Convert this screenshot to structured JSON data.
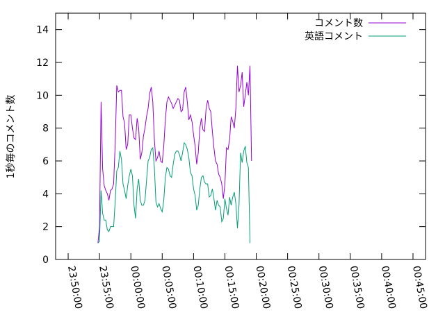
{
  "chart_data": {
    "type": "line",
    "title": "",
    "xlabel": "",
    "ylabel": "1秒毎のコメント数",
    "ylim": [
      0,
      15
    ],
    "yticks": [
      0,
      2,
      4,
      6,
      8,
      10,
      12,
      14
    ],
    "xlim": [
      "23:48:00",
      "00:47:00"
    ],
    "xticks": [
      "23:50:00",
      "23:55:00",
      "00:00:00",
      "00:05:00",
      "00:10:00",
      "00:15:00",
      "00:20:00",
      "00:25:00",
      "00:30:00",
      "00:35:00",
      "00:40:00",
      "00:45:00"
    ],
    "grid": false,
    "legend": "top-right",
    "series": [
      {
        "name": "コメント数",
        "color": "#9400d3",
        "points": [
          [
            "23:54:45",
            1.0
          ],
          [
            "23:55:00",
            2.0
          ],
          [
            "23:55:15",
            9.6
          ],
          [
            "23:55:30",
            5.5
          ],
          [
            "23:55:45",
            4.5
          ],
          [
            "23:56:00",
            4.2
          ],
          [
            "23:56:15",
            4.0
          ],
          [
            "23:56:30",
            3.6
          ],
          [
            "23:56:45",
            4.2
          ],
          [
            "23:57:00",
            4.3
          ],
          [
            "23:57:15",
            4.6
          ],
          [
            "23:57:30",
            7.0
          ],
          [
            "23:57:45",
            10.6
          ],
          [
            "23:58:00",
            10.2
          ],
          [
            "23:58:15",
            10.3
          ],
          [
            "23:58:30",
            10.3
          ],
          [
            "23:58:45",
            8.7
          ],
          [
            "23:59:00",
            8.3
          ],
          [
            "23:59:15",
            6.7
          ],
          [
            "23:59:30",
            7.0
          ],
          [
            "23:59:45",
            8.8
          ],
          [
            "00:00:00",
            8.8
          ],
          [
            "00:00:15",
            8.0
          ],
          [
            "00:00:30",
            7.4
          ],
          [
            "00:00:45",
            7.3
          ],
          [
            "00:01:00",
            8.6
          ],
          [
            "00:01:15",
            8.0
          ],
          [
            "00:01:30",
            6.1
          ],
          [
            "00:01:45",
            6.5
          ],
          [
            "00:02:00",
            7.5
          ],
          [
            "00:02:15",
            8.0
          ],
          [
            "00:02:30",
            8.7
          ],
          [
            "00:02:45",
            9.2
          ],
          [
            "00:03:00",
            10.1
          ],
          [
            "00:03:15",
            10.5
          ],
          [
            "00:03:30",
            9.6
          ],
          [
            "00:03:45",
            7.3
          ],
          [
            "00:04:00",
            6.0
          ],
          [
            "00:04:15",
            6.2
          ],
          [
            "00:04:30",
            6.6
          ],
          [
            "00:04:45",
            6.0
          ],
          [
            "00:05:00",
            5.9
          ],
          [
            "00:05:15",
            6.9
          ],
          [
            "00:05:30",
            8.5
          ],
          [
            "00:05:45",
            9.6
          ],
          [
            "00:06:00",
            9.9
          ],
          [
            "00:06:15",
            9.7
          ],
          [
            "00:06:30",
            9.5
          ],
          [
            "00:06:45",
            9.2
          ],
          [
            "00:07:00",
            9.4
          ],
          [
            "00:07:15",
            9.6
          ],
          [
            "00:07:30",
            9.8
          ],
          [
            "00:07:45",
            9.7
          ],
          [
            "00:08:00",
            9.0
          ],
          [
            "00:08:15",
            9.1
          ],
          [
            "00:08:30",
            10.2
          ],
          [
            "00:08:45",
            10.5
          ],
          [
            "00:09:00",
            9.6
          ],
          [
            "00:09:15",
            8.5
          ],
          [
            "00:09:30",
            8.8
          ],
          [
            "00:09:45",
            8.4
          ],
          [
            "00:10:00",
            7.6
          ],
          [
            "00:10:15",
            6.9
          ],
          [
            "00:10:30",
            5.8
          ],
          [
            "00:10:45",
            6.5
          ],
          [
            "00:11:00",
            8.0
          ],
          [
            "00:11:15",
            8.6
          ],
          [
            "00:11:30",
            7.9
          ],
          [
            "00:11:45",
            7.8
          ],
          [
            "00:12:00",
            9.2
          ],
          [
            "00:12:15",
            9.7
          ],
          [
            "00:12:30",
            9.2
          ],
          [
            "00:12:45",
            9.0
          ],
          [
            "00:13:00",
            7.8
          ],
          [
            "00:13:15",
            6.8
          ],
          [
            "00:13:30",
            6.0
          ],
          [
            "00:13:45",
            5.8
          ],
          [
            "00:14:00",
            5.2
          ],
          [
            "00:14:15",
            5.0
          ],
          [
            "00:14:30",
            4.6
          ],
          [
            "00:14:45",
            3.7
          ],
          [
            "00:15:00",
            4.6
          ],
          [
            "00:15:15",
            6.8
          ],
          [
            "00:15:30",
            6.7
          ],
          [
            "00:15:45",
            7.3
          ],
          [
            "00:16:00",
            8.7
          ],
          [
            "00:16:15",
            8.4
          ],
          [
            "00:16:30",
            8.0
          ],
          [
            "00:16:45",
            9.2
          ],
          [
            "00:17:00",
            11.8
          ],
          [
            "00:17:15",
            10.2
          ],
          [
            "00:17:30",
            10.6
          ],
          [
            "00:17:45",
            11.4
          ],
          [
            "00:18:00",
            9.3
          ],
          [
            "00:18:15",
            10.0
          ],
          [
            "00:18:30",
            10.8
          ],
          [
            "00:18:45",
            10.0
          ],
          [
            "00:19:00",
            11.8
          ],
          [
            "00:19:15",
            6.0
          ]
        ]
      },
      {
        "name": "英語コメント",
        "color": "#009e73",
        "points": [
          [
            "23:54:45",
            1.0
          ],
          [
            "23:55:00",
            1.1
          ],
          [
            "23:55:15",
            4.2
          ],
          [
            "23:55:30",
            2.8
          ],
          [
            "23:55:45",
            2.4
          ],
          [
            "23:56:00",
            2.4
          ],
          [
            "23:56:15",
            1.8
          ],
          [
            "23:56:30",
            1.7
          ],
          [
            "23:56:45",
            2.0
          ],
          [
            "23:57:00",
            2.0
          ],
          [
            "23:57:15",
            2.0
          ],
          [
            "23:57:30",
            3.5
          ],
          [
            "23:57:45",
            5.4
          ],
          [
            "23:58:00",
            5.6
          ],
          [
            "23:58:15",
            6.6
          ],
          [
            "23:58:30",
            6.1
          ],
          [
            "23:58:45",
            4.6
          ],
          [
            "23:59:00",
            4.2
          ],
          [
            "23:59:15",
            3.7
          ],
          [
            "23:59:30",
            4.5
          ],
          [
            "23:59:45",
            5.1
          ],
          [
            "00:00:00",
            5.5
          ],
          [
            "00:00:15",
            5.1
          ],
          [
            "00:00:30",
            3.3
          ],
          [
            "00:00:45",
            2.5
          ],
          [
            "00:01:00",
            4.3
          ],
          [
            "00:01:15",
            4.9
          ],
          [
            "00:01:30",
            3.6
          ],
          [
            "00:01:45",
            3.3
          ],
          [
            "00:02:00",
            3.3
          ],
          [
            "00:02:15",
            3.6
          ],
          [
            "00:02:30",
            4.8
          ],
          [
            "00:02:45",
            6.0
          ],
          [
            "00:03:00",
            6.2
          ],
          [
            "00:03:15",
            6.7
          ],
          [
            "00:03:30",
            6.8
          ],
          [
            "00:03:45",
            5.6
          ],
          [
            "00:04:00",
            3.5
          ],
          [
            "00:04:15",
            3.2
          ],
          [
            "00:04:30",
            3.4
          ],
          [
            "00:04:45",
            3.1
          ],
          [
            "00:05:00",
            2.9
          ],
          [
            "00:05:15",
            3.6
          ],
          [
            "00:05:30",
            5.0
          ],
          [
            "00:05:45",
            5.6
          ],
          [
            "00:06:00",
            5.5
          ],
          [
            "00:06:15",
            5.1
          ],
          [
            "00:06:30",
            5.0
          ],
          [
            "00:06:45",
            5.8
          ],
          [
            "00:07:00",
            6.4
          ],
          [
            "00:07:15",
            6.6
          ],
          [
            "00:07:30",
            6.6
          ],
          [
            "00:07:45",
            6.4
          ],
          [
            "00:08:00",
            6.0
          ],
          [
            "00:08:15",
            6.5
          ],
          [
            "00:08:30",
            7.1
          ],
          [
            "00:08:45",
            7.0
          ],
          [
            "00:09:00",
            6.7
          ],
          [
            "00:09:15",
            6.2
          ],
          [
            "00:09:30",
            5.3
          ],
          [
            "00:09:45",
            5.1
          ],
          [
            "00:10:00",
            4.3
          ],
          [
            "00:10:15",
            3.9
          ],
          [
            "00:10:30",
            3.0
          ],
          [
            "00:10:45",
            3.3
          ],
          [
            "00:11:00",
            4.3
          ],
          [
            "00:11:15",
            5.0
          ],
          [
            "00:11:30",
            5.1
          ],
          [
            "00:11:45",
            4.7
          ],
          [
            "00:12:00",
            4.6
          ],
          [
            "00:12:15",
            4.6
          ],
          [
            "00:12:30",
            3.8
          ],
          [
            "00:12:45",
            3.9
          ],
          [
            "00:13:00",
            4.3
          ],
          [
            "00:13:15",
            3.7
          ],
          [
            "00:13:30",
            3.0
          ],
          [
            "00:13:45",
            3.6
          ],
          [
            "00:14:00",
            3.3
          ],
          [
            "00:14:15",
            3.2
          ],
          [
            "00:14:30",
            2.3
          ],
          [
            "00:14:45",
            2.5
          ],
          [
            "00:15:00",
            3.7
          ],
          [
            "00:15:15",
            3.1
          ],
          [
            "00:15:30",
            2.7
          ],
          [
            "00:15:45",
            3.8
          ],
          [
            "00:16:00",
            3.3
          ],
          [
            "00:16:15",
            3.8
          ],
          [
            "00:16:30",
            4.1
          ],
          [
            "00:16:45",
            3.4
          ],
          [
            "00:17:00",
            1.9
          ],
          [
            "00:17:15",
            3.3
          ],
          [
            "00:17:30",
            6.5
          ],
          [
            "00:17:45",
            5.9
          ],
          [
            "00:18:00",
            6.6
          ],
          [
            "00:18:15",
            6.9
          ],
          [
            "00:18:30",
            5.9
          ],
          [
            "00:18:45",
            5.6
          ],
          [
            "00:19:00",
            1.0
          ]
        ]
      }
    ]
  }
}
